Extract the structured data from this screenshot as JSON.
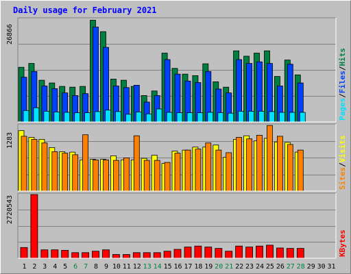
{
  "chart_data": {
    "type": "bar",
    "title": "Daily usage for February 2021",
    "x": {
      "days": [
        "1",
        "2",
        "3",
        "4",
        "5",
        "6",
        "7",
        "8",
        "9",
        "10",
        "11",
        "12",
        "13",
        "14",
        "15",
        "16",
        "17",
        "18",
        "19",
        "20",
        "21",
        "22",
        "23",
        "24",
        "25",
        "26",
        "27",
        "28",
        "29",
        "30",
        "31"
      ],
      "weekend_days": [
        "6",
        "7",
        "13",
        "14",
        "20",
        "21",
        "27",
        "28"
      ]
    },
    "panels": [
      {
        "name": "hits-files-pages",
        "ymax_label": "26866",
        "ymax": 26866,
        "grid": true,
        "legend": [
          {
            "label": "Pages",
            "color": "#00e0ff"
          },
          {
            "sep": "/",
            "color": "#000000"
          },
          {
            "label": "Files",
            "color": "#0040ff"
          },
          {
            "sep": "/",
            "color": "#000000"
          },
          {
            "label": "Hits",
            "color": "#008040"
          }
        ],
        "series": [
          {
            "name": "Hits",
            "color": "#008040",
            "values": [
              14300,
              15300,
              10900,
              10200,
              9300,
              9100,
              9300,
              26600,
              23600,
              11200,
              10900,
              9300,
              6900,
              8100,
              18000,
              14000,
              12500,
              12100,
              15200,
              10500,
              9100,
              18600,
              17200,
              18000,
              18600,
              11900,
              16200,
              12300
            ]
          },
          {
            "name": "Files",
            "color": "#0040ff",
            "values": [
              11700,
              13200,
              9400,
              8700,
              7600,
              6900,
              7400,
              24800,
              19500,
              9400,
              9000,
              9600,
              5200,
              6900,
              16300,
              12500,
              10700,
              10300,
              13200,
              8600,
              7600,
              16300,
              15300,
              15700,
              15300,
              9400,
              15100,
              10200
            ]
          },
          {
            "name": "Pages",
            "color": "#00e0ff",
            "values": [
              3000,
              3700,
              2800,
              2600,
              2500,
              2400,
              2400,
              2700,
              3100,
              2700,
              2000,
              2600,
              2100,
              3400,
              2500,
              2400,
              2400,
              2400,
              2500,
              2400,
              2300,
              2800,
              2800,
              2800,
              2700,
              2500,
              2500,
              2500
            ]
          }
        ]
      },
      {
        "name": "visits-sites",
        "ymax_label": "1283",
        "ymax": 1283,
        "grid": true,
        "legend": [
          {
            "label": "Sites",
            "color": "#ff8000"
          },
          {
            "sep": "/",
            "color": "#000000"
          },
          {
            "label": "Visits",
            "color": "#ffff00"
          }
        ],
        "series": [
          {
            "name": "Visits",
            "color": "#ffff00",
            "values": [
              1180,
              1050,
              1010,
              850,
              770,
              760,
              610,
              620,
              620,
              690,
              610,
              610,
              640,
              700,
              540,
              780,
              800,
              860,
              860,
              900,
              660,
              1010,
              1080,
              980,
              1030,
              960,
              950,
              760
            ]
          },
          {
            "name": "Sites",
            "color": "#ff8000",
            "values": [
              1070,
              1010,
              940,
              770,
              740,
              710,
              1100,
              610,
              610,
              600,
              650,
              1080,
              600,
              600,
              560,
              740,
              800,
              820,
              940,
              800,
              750,
              1050,
              1020,
              1090,
              1280,
              1070,
              910,
              800
            ]
          }
        ]
      },
      {
        "name": "kbytes",
        "ymax_label": "2720543",
        "ymax": 2720543,
        "grid": true,
        "legend": [
          {
            "label": "KBytes",
            "color": "#ff0000"
          }
        ],
        "series": [
          {
            "name": "KBytes",
            "color": "#ff0000",
            "values": [
              460000,
              2720543,
              360000,
              360000,
              340000,
              240000,
              240000,
              300000,
              360000,
              160000,
              160000,
              240000,
              240000,
              240000,
              300000,
              380000,
              480000,
              520000,
              480000,
              420000,
              300000,
              520000,
              480000,
              520000,
              560000,
              440000,
              420000,
              420000
            ]
          }
        ]
      }
    ]
  },
  "colors": {
    "background": "#c0c0c0",
    "plot_background": "#c0c0c0",
    "grid": "#808080",
    "axis_text": "#000000",
    "weekend_text": "#008040",
    "title": "#0000ff"
  }
}
